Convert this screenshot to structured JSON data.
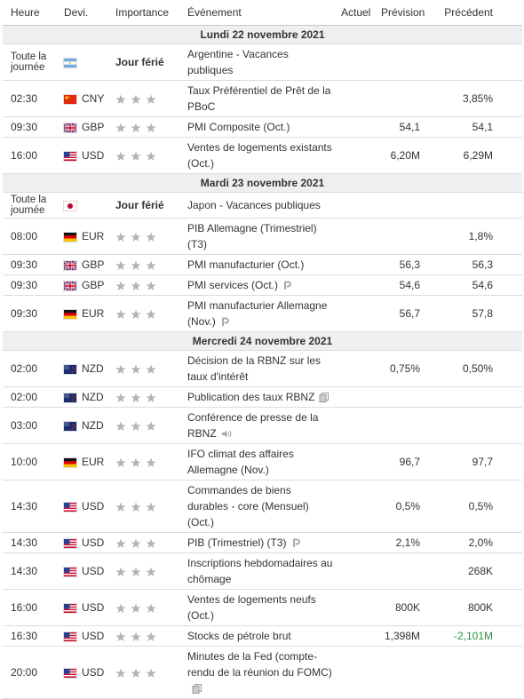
{
  "columns": [
    "Heure",
    "Devi.",
    "Importance",
    "Événement",
    "Actuel",
    "Prévision",
    "Précédent"
  ],
  "sections": [
    {
      "date": "Lundi 22 novembre 2021",
      "rows": [
        {
          "time": "Toute la journée",
          "flag": "ar",
          "importance": "Jour férié",
          "event": "Argentine - Vacances publiques"
        },
        {
          "time": "02:30",
          "flag": "cn",
          "currency": "CNY",
          "event": "Taux Préférentiel de Prêt de la PBoC",
          "previous": "3,85%"
        },
        {
          "time": "09:30",
          "flag": "gb",
          "currency": "GBP",
          "event": "PMI Composite (Oct.)",
          "forecast": "54,1",
          "previous": "54,1"
        },
        {
          "time": "16:00",
          "flag": "us",
          "currency": "USD",
          "event": "Ventes de logements existants (Oct.)",
          "forecast": "6,20M",
          "previous": "6,29M"
        }
      ]
    },
    {
      "date": "Mardi 23 novembre 2021",
      "rows": [
        {
          "time": "Toute la journée",
          "flag": "jp",
          "importance": "Jour férié",
          "event": "Japon - Vacances publiques"
        },
        {
          "time": "08:00",
          "flag": "de",
          "currency": "EUR",
          "event": "PIB Allemagne (Trimestriel) (T3)",
          "previous": "1,8%"
        },
        {
          "time": "09:30",
          "flag": "gb",
          "currency": "GBP",
          "event": "PMI manufacturier (Oct.)",
          "forecast": "56,3",
          "previous": "56,3"
        },
        {
          "time": "09:30",
          "flag": "gb",
          "currency": "GBP",
          "event": "PMI services (Oct.)",
          "icon": "p",
          "forecast": "54,6",
          "previous": "54,6"
        },
        {
          "time": "09:30",
          "flag": "de",
          "currency": "EUR",
          "event": "PMI manufacturier Allemagne (Nov.)",
          "icon": "p",
          "forecast": "56,7",
          "previous": "57,8"
        }
      ]
    },
    {
      "date": "Mercredi 24 novembre 2021",
      "rows": [
        {
          "time": "02:00",
          "flag": "nz",
          "currency": "NZD",
          "event": "Décision de la RBNZ sur les taux d'intérêt",
          "forecast": "0,75%",
          "previous": "0,50%"
        },
        {
          "time": "02:00",
          "flag": "nz",
          "currency": "NZD",
          "event": "Publication des taux RBNZ",
          "icon": "doc"
        },
        {
          "time": "03:00",
          "flag": "nz",
          "currency": "NZD",
          "event": "Conférence de presse de la RBNZ",
          "icon": "audio"
        },
        {
          "time": "10:00",
          "flag": "de",
          "currency": "EUR",
          "event": "IFO climat des affaires Allemagne (Nov.)",
          "forecast": "96,7",
          "previous": "97,7"
        },
        {
          "time": "14:30",
          "flag": "us",
          "currency": "USD",
          "event": "Commandes de biens durables - core (Mensuel) (Oct.)",
          "forecast": "0,5%",
          "previous": "0,5%"
        },
        {
          "time": "14:30",
          "flag": "us",
          "currency": "USD",
          "event": "PIB (Trimestriel) (T3)",
          "icon": "p",
          "forecast": "2,1%",
          "previous": "2,0%"
        },
        {
          "time": "14:30",
          "flag": "us",
          "currency": "USD",
          "event": "Inscriptions hebdomadaires au chômage",
          "previous": "268K"
        },
        {
          "time": "16:00",
          "flag": "us",
          "currency": "USD",
          "event": "Ventes de logements neufs (Oct.)",
          "forecast": "800K",
          "previous": "800K"
        },
        {
          "time": "16:30",
          "flag": "us",
          "currency": "USD",
          "event": "Stocks de pétrole brut",
          "forecast": "1,398M",
          "previous": "-2,101M",
          "previous_color": "#1e9a35"
        },
        {
          "time": "20:00",
          "flag": "us",
          "currency": "USD",
          "event": "Minutes de la Fed (compte-rendu de la réunion du FOMC)",
          "icon": "doc"
        }
      ]
    }
  ]
}
